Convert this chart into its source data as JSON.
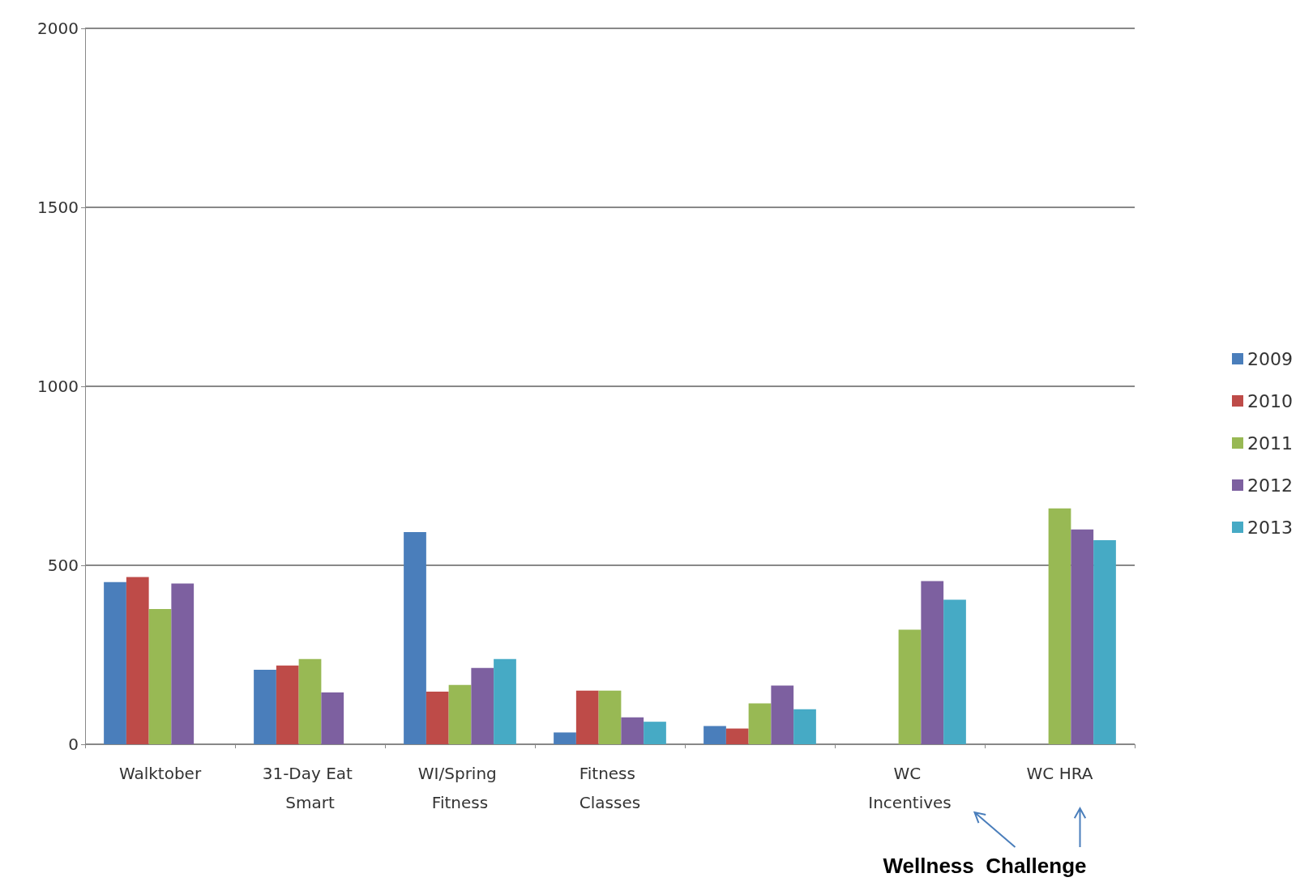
{
  "chart_data": {
    "type": "bar",
    "categories": [
      "Walktober",
      "31-Day Eat Smart",
      "WI/Spring Fitness",
      "Fitness Classes",
      null,
      "WC Incentives",
      "WC HRA"
    ],
    "series": [
      {
        "name": "2009",
        "color": "#4a7ebb",
        "values": [
          453,
          208,
          593,
          33,
          51,
          null,
          null
        ]
      },
      {
        "name": "2010",
        "color": "#be4b48",
        "values": [
          467,
          220,
          147,
          150,
          44,
          null,
          null
        ]
      },
      {
        "name": "2011",
        "color": "#98b954",
        "values": [
          378,
          238,
          166,
          150,
          114,
          320,
          659
        ]
      },
      {
        "name": "2012",
        "color": "#7d60a0",
        "values": [
          449,
          145,
          213,
          75,
          164,
          456,
          600
        ]
      },
      {
        "name": "2013",
        "color": "#46aac5",
        "values": [
          null,
          null,
          238,
          63,
          98,
          404,
          570
        ]
      }
    ],
    "ylim": [
      0,
      2000
    ],
    "yticks": [
      0,
      500,
      1000,
      1500,
      2000
    ],
    "grid": "y",
    "legend": "right",
    "annotations": [
      "Wellness  Challenge"
    ]
  }
}
